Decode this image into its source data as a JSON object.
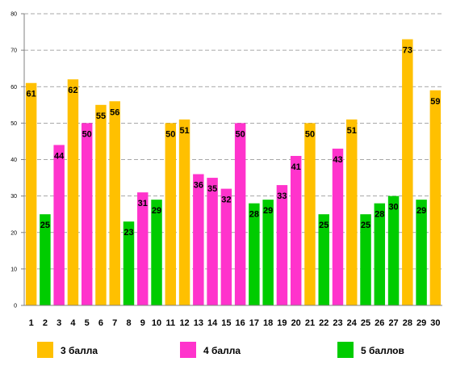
{
  "chart_data": {
    "type": "bar",
    "categories": [
      "1",
      "2",
      "3",
      "4",
      "5",
      "6",
      "7",
      "8",
      "9",
      "10",
      "11",
      "12",
      "13",
      "14",
      "15",
      "16",
      "17",
      "18",
      "19",
      "20",
      "21",
      "22",
      "23",
      "24",
      "25",
      "26",
      "27",
      "28",
      "29",
      "30"
    ],
    "values": [
      61,
      25,
      44,
      62,
      50,
      55,
      56,
      23,
      31,
      29,
      50,
      51,
      36,
      35,
      32,
      50,
      28,
      29,
      33,
      41,
      50,
      25,
      43,
      51,
      25,
      28,
      30,
      73,
      29,
      59
    ],
    "groups": [
      "3",
      "5",
      "4",
      "3",
      "4",
      "3",
      "3",
      "5",
      "4",
      "5",
      "3",
      "3",
      "4",
      "4",
      "4",
      "4",
      "5",
      "5",
      "4",
      "4",
      "3",
      "5",
      "4",
      "3",
      "5",
      "5",
      "5",
      "3",
      "5",
      "3"
    ],
    "legend": [
      {
        "key": "3",
        "label": "3 балла",
        "color": "#FFC000"
      },
      {
        "key": "4",
        "label": "4 балла",
        "color": "#FF33CC"
      },
      {
        "key": "5",
        "label": "5 баллов",
        "color": "#00CC00"
      }
    ],
    "yticks": [
      "0",
      "10",
      "20",
      "30",
      "40",
      "50",
      "60",
      "70",
      "80"
    ],
    "ylim": [
      0,
      80
    ],
    "grid": true,
    "legend_position": "bottom"
  }
}
